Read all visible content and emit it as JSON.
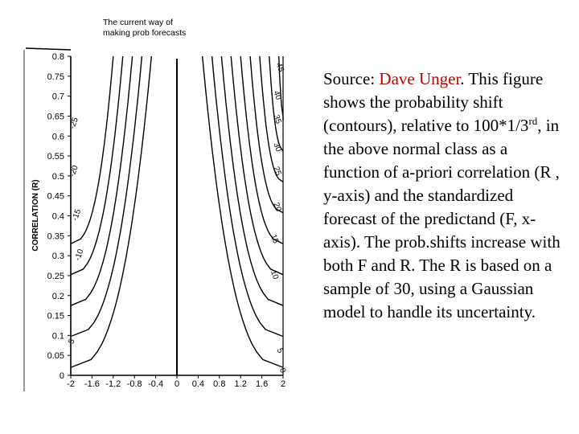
{
  "note": {
    "text": "The current way of making prob forecasts"
  },
  "source": {
    "prefix": "Source: ",
    "author": "Dave Unger",
    "text_1": ". This figure shows the probability shift (contours), relative to 100*1/3",
    "superscript": "rd",
    "text_2": ", in the above normal class as a function of a-priori correlation (R , y-axis) and the standardized forecast of the predictand (F, x-axis). The prob.shifts increase with both F and R. The R is based on a sample of 30, using a Gaussian model to handle its uncertainty."
  },
  "colors": {
    "author": "#c00000",
    "line": "#000000"
  },
  "chart_data": {
    "type": "contour",
    "ylabel": "CORRELATION (R)",
    "xlabel": "",
    "x_ticks": [
      "-2",
      "-1.6",
      "-1.2",
      "-0.8",
      "-0.4",
      "0",
      "0.4",
      "0.8",
      "1.2",
      "1.6",
      "2"
    ],
    "y_ticks": [
      "0",
      "0.05",
      "0.1",
      "0.15",
      "0.2",
      "0.25",
      "0.3",
      "0.35",
      "0.4",
      "0.45",
      "0.5",
      "0.55",
      "0.6",
      "0.65",
      "0.7",
      "0.75",
      "0.8"
    ],
    "xlim": [
      -2,
      2
    ],
    "ylim": [
      0,
      0.8
    ],
    "contours": [
      {
        "level": -5,
        "label": "-5",
        "side": "left",
        "label_at": [
          -1.95,
          0.08
        ]
      },
      {
        "level": -10,
        "label": "-10",
        "side": "left",
        "label_at": [
          -1.8,
          0.3
        ]
      },
      {
        "level": -15,
        "label": "-15",
        "side": "left",
        "label_at": [
          -1.85,
          0.4
        ]
      },
      {
        "level": -20,
        "label": "-20",
        "side": "left",
        "label_at": [
          -1.9,
          0.51
        ]
      },
      {
        "level": -25,
        "label": "-25",
        "side": "left",
        "label_at": [
          -1.9,
          0.63
        ]
      },
      {
        "level": 0,
        "label": "0",
        "side": "center",
        "label_at": [
          1.95,
          0.01
        ]
      },
      {
        "level": 5,
        "label": "5",
        "side": "right",
        "label_at": [
          1.9,
          0.06
        ]
      },
      {
        "level": 10,
        "label": "10",
        "side": "right",
        "label_at": [
          1.8,
          0.25
        ]
      },
      {
        "level": 15,
        "label": "15",
        "side": "right",
        "label_at": [
          1.8,
          0.34
        ]
      },
      {
        "level": 20,
        "label": "20",
        "side": "right",
        "label_at": [
          1.85,
          0.42
        ]
      },
      {
        "level": 25,
        "label": "25",
        "side": "right",
        "label_at": [
          1.85,
          0.51
        ]
      },
      {
        "level": 30,
        "label": "30",
        "side": "right",
        "label_at": [
          1.85,
          0.57
        ]
      },
      {
        "level": 35,
        "label": "35",
        "side": "right",
        "label_at": [
          1.85,
          0.64
        ]
      },
      {
        "level": 40,
        "label": "40",
        "side": "right",
        "label_at": [
          1.85,
          0.7
        ]
      },
      {
        "level": 45,
        "label": "45",
        "side": "right",
        "label_at": [
          1.9,
          0.77
        ]
      }
    ]
  }
}
